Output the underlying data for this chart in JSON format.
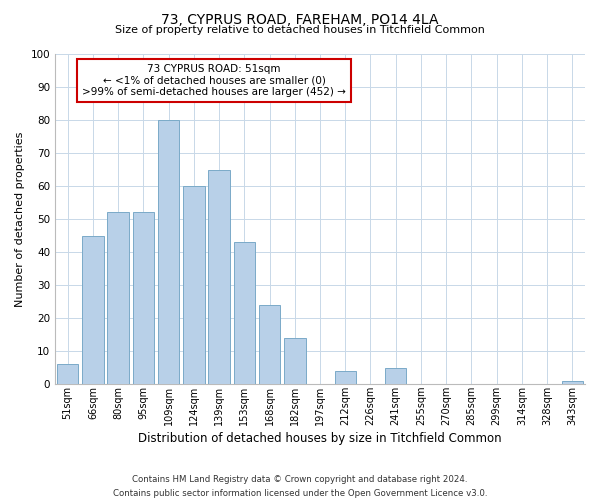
{
  "title": "73, CYPRUS ROAD, FAREHAM, PO14 4LA",
  "subtitle": "Size of property relative to detached houses in Titchfield Common",
  "xlabel": "Distribution of detached houses by size in Titchfield Common",
  "ylabel": "Number of detached properties",
  "bar_labels": [
    "51sqm",
    "66sqm",
    "80sqm",
    "95sqm",
    "109sqm",
    "124sqm",
    "139sqm",
    "153sqm",
    "168sqm",
    "182sqm",
    "197sqm",
    "212sqm",
    "226sqm",
    "241sqm",
    "255sqm",
    "270sqm",
    "285sqm",
    "299sqm",
    "314sqm",
    "328sqm",
    "343sqm"
  ],
  "bar_values": [
    6,
    45,
    52,
    52,
    80,
    60,
    65,
    43,
    24,
    14,
    0,
    4,
    0,
    5,
    0,
    0,
    0,
    0,
    0,
    0,
    1
  ],
  "bar_color": "#b8d0e8",
  "bar_edge_color": "#7aaac8",
  "annotation_text": "73 CYPRUS ROAD: 51sqm\n← <1% of detached houses are smaller (0)\n>99% of semi-detached houses are larger (452) →",
  "annotation_box_facecolor": "#ffffff",
  "annotation_box_edgecolor": "#cc0000",
  "ylim": [
    0,
    100
  ],
  "yticks": [
    0,
    10,
    20,
    30,
    40,
    50,
    60,
    70,
    80,
    90,
    100
  ],
  "footer_line1": "Contains HM Land Registry data © Crown copyright and database right 2024.",
  "footer_line2": "Contains public sector information licensed under the Open Government Licence v3.0.",
  "bg_color": "#ffffff",
  "plot_bg_color": "#ffffff",
  "grid_color": "#c8d8e8"
}
